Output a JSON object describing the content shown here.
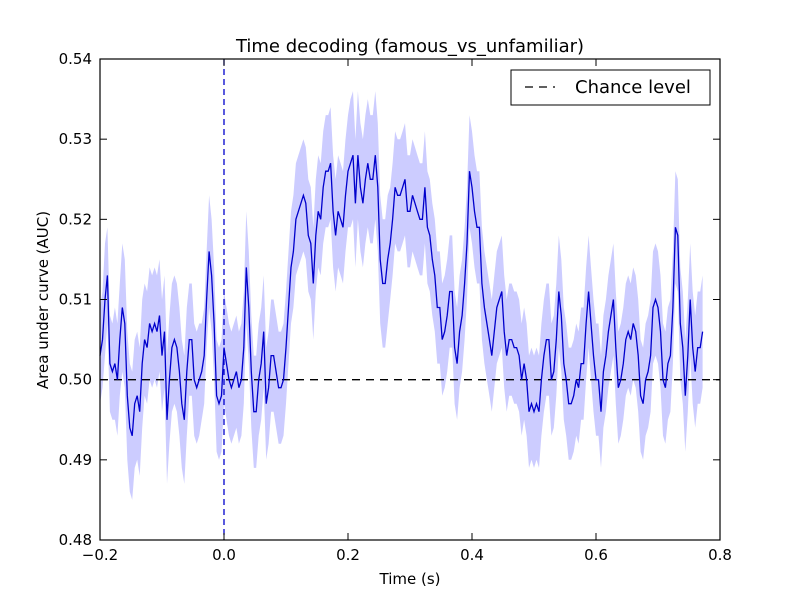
{
  "chart_data": {
    "type": "line",
    "title": "Time decoding (famous_vs_unfamiliar)",
    "xlabel": "Time (s)",
    "ylabel": "Area under curve (AUC)",
    "xlim": [
      -0.2,
      0.8
    ],
    "ylim": [
      0.48,
      0.54
    ],
    "x_ticks": [
      -0.2,
      0.0,
      0.2,
      0.4,
      0.6,
      0.8
    ],
    "x_tick_labels": [
      "−0.2",
      "0.0",
      "0.2",
      "0.4",
      "0.6",
      "0.8"
    ],
    "y_ticks": [
      0.48,
      0.49,
      0.5,
      0.51,
      0.52,
      0.53,
      0.54
    ],
    "y_tick_labels": [
      "0.48",
      "0.49",
      "0.50",
      "0.51",
      "0.52",
      "0.53",
      "0.54"
    ],
    "x_step": 0.004,
    "x_start": -0.2,
    "series": [
      {
        "color": "#0000cc",
        "band_color": "#0000ff",
        "band_opacity": 0.2,
        "values": [
          0.503,
          0.505,
          0.51,
          0.513,
          0.502,
          0.501,
          0.502,
          0.5,
          0.505,
          0.509,
          0.507,
          0.498,
          0.494,
          0.493,
          0.497,
          0.498,
          0.496,
          0.502,
          0.505,
          0.504,
          0.507,
          0.506,
          0.507,
          0.506,
          0.508,
          0.503,
          0.506,
          0.495,
          0.5,
          0.504,
          0.505,
          0.504,
          0.501,
          0.497,
          0.495,
          0.501,
          0.505,
          0.505,
          0.5,
          0.499,
          0.5,
          0.501,
          0.503,
          0.51,
          0.516,
          0.513,
          0.507,
          0.498,
          0.497,
          0.498,
          0.504,
          0.502,
          0.5,
          0.499,
          0.5,
          0.501,
          0.499,
          0.5,
          0.504,
          0.514,
          0.509,
          0.501,
          0.496,
          0.496,
          0.5,
          0.502,
          0.506,
          0.497,
          0.499,
          0.503,
          0.503,
          0.501,
          0.499,
          0.499,
          0.5,
          0.504,
          0.509,
          0.514,
          0.516,
          0.52,
          0.521,
          0.522,
          0.523,
          0.522,
          0.518,
          0.517,
          0.512,
          0.518,
          0.521,
          0.52,
          0.524,
          0.526,
          0.526,
          0.527,
          0.521,
          0.518,
          0.521,
          0.52,
          0.519,
          0.523,
          0.526,
          0.527,
          0.528,
          0.522,
          0.528,
          0.524,
          0.522,
          0.525,
          0.527,
          0.525,
          0.525,
          0.528,
          0.524,
          0.515,
          0.512,
          0.512,
          0.515,
          0.517,
          0.52,
          0.524,
          0.523,
          0.523,
          0.524,
          0.525,
          0.521,
          0.521,
          0.523,
          0.522,
          0.521,
          0.52,
          0.52,
          0.524,
          0.519,
          0.518,
          0.515,
          0.513,
          0.509,
          0.509,
          0.505,
          0.506,
          0.508,
          0.511,
          0.511,
          0.504,
          0.502,
          0.506,
          0.508,
          0.512,
          0.517,
          0.526,
          0.524,
          0.521,
          0.519,
          0.519,
          0.512,
          0.509,
          0.507,
          0.505,
          0.503,
          0.506,
          0.509,
          0.51,
          0.511,
          0.506,
          0.503,
          0.505,
          0.505,
          0.504,
          0.504,
          0.503,
          0.5,
          0.502,
          0.5,
          0.496,
          0.497,
          0.496,
          0.497,
          0.496,
          0.5,
          0.503,
          0.505,
          0.505,
          0.5,
          0.501,
          0.505,
          0.511,
          0.508,
          0.502,
          0.5,
          0.497,
          0.497,
          0.498,
          0.5,
          0.499,
          0.502,
          0.502,
          0.507,
          0.511,
          0.507,
          0.503,
          0.5,
          0.5,
          0.496,
          0.501,
          0.503,
          0.506,
          0.508,
          0.51,
          0.504,
          0.499,
          0.5,
          0.502,
          0.505,
          0.506,
          0.505,
          0.507,
          0.506,
          0.503,
          0.498,
          0.497,
          0.5,
          0.501,
          0.503,
          0.509,
          0.51,
          0.509,
          0.506,
          0.5,
          0.499,
          0.502,
          0.503,
          0.509,
          0.519,
          0.518,
          0.507,
          0.504,
          0.498,
          0.503,
          0.51,
          0.504,
          0.501,
          0.504,
          0.504,
          0.506
        ],
        "band_halfwidth": [
          0.006,
          0.006,
          0.007,
          0.006,
          0.006,
          0.006,
          0.007,
          0.007,
          0.007,
          0.008,
          0.008,
          0.008,
          0.008,
          0.008,
          0.008,
          0.008,
          0.008,
          0.008,
          0.007,
          0.007,
          0.007,
          0.007,
          0.007,
          0.007,
          0.007,
          0.007,
          0.007,
          0.008,
          0.008,
          0.008,
          0.008,
          0.008,
          0.008,
          0.008,
          0.008,
          0.008,
          0.007,
          0.007,
          0.007,
          0.007,
          0.007,
          0.006,
          0.006,
          0.006,
          0.007,
          0.007,
          0.007,
          0.007,
          0.007,
          0.007,
          0.007,
          0.007,
          0.007,
          0.007,
          0.007,
          0.007,
          0.007,
          0.007,
          0.007,
          0.007,
          0.007,
          0.007,
          0.007,
          0.007,
          0.007,
          0.007,
          0.007,
          0.007,
          0.007,
          0.007,
          0.007,
          0.007,
          0.007,
          0.007,
          0.007,
          0.007,
          0.007,
          0.007,
          0.007,
          0.007,
          0.007,
          0.007,
          0.007,
          0.007,
          0.007,
          0.007,
          0.007,
          0.007,
          0.007,
          0.007,
          0.007,
          0.007,
          0.007,
          0.007,
          0.007,
          0.007,
          0.007,
          0.007,
          0.007,
          0.007,
          0.007,
          0.008,
          0.008,
          0.008,
          0.008,
          0.008,
          0.008,
          0.008,
          0.008,
          0.008,
          0.008,
          0.008,
          0.008,
          0.008,
          0.008,
          0.008,
          0.008,
          0.007,
          0.007,
          0.007,
          0.007,
          0.007,
          0.007,
          0.007,
          0.007,
          0.007,
          0.007,
          0.007,
          0.007,
          0.007,
          0.007,
          0.007,
          0.007,
          0.007,
          0.007,
          0.007,
          0.007,
          0.007,
          0.007,
          0.007,
          0.007,
          0.007,
          0.007,
          0.007,
          0.007,
          0.007,
          0.007,
          0.007,
          0.007,
          0.007,
          0.007,
          0.007,
          0.007,
          0.007,
          0.007,
          0.007,
          0.007,
          0.007,
          0.007,
          0.007,
          0.007,
          0.007,
          0.007,
          0.007,
          0.007,
          0.007,
          0.007,
          0.007,
          0.007,
          0.007,
          0.007,
          0.007,
          0.007,
          0.007,
          0.007,
          0.007,
          0.007,
          0.007,
          0.007,
          0.007,
          0.007,
          0.007,
          0.007,
          0.007,
          0.007,
          0.007,
          0.007,
          0.007,
          0.007,
          0.007,
          0.007,
          0.007,
          0.007,
          0.007,
          0.007,
          0.007,
          0.007,
          0.007,
          0.007,
          0.007,
          0.007,
          0.007,
          0.007,
          0.007,
          0.007,
          0.007,
          0.007,
          0.007,
          0.007,
          0.007,
          0.007,
          0.007,
          0.007,
          0.007,
          0.007,
          0.007,
          0.007,
          0.007,
          0.007,
          0.007,
          0.007,
          0.007,
          0.007,
          0.007,
          0.007,
          0.007,
          0.007,
          0.007,
          0.007,
          0.007,
          0.007,
          0.007,
          0.007,
          0.007,
          0.007,
          0.007,
          0.007,
          0.007,
          0.007,
          0.007,
          0.007,
          0.007,
          0.007,
          0.007,
          0.007
        ]
      }
    ],
    "reference_lines": [
      {
        "orientation": "horizontal",
        "value": 0.5,
        "style": "dashed",
        "color": "#000000"
      },
      {
        "orientation": "vertical",
        "value": 0.0,
        "style": "dashed",
        "color": "#0000cc"
      }
    ],
    "legend": {
      "placement": "top-right",
      "entries": [
        {
          "label": "Chance level",
          "style": "dashed",
          "color": "#000000"
        }
      ]
    },
    "grid": false
  }
}
